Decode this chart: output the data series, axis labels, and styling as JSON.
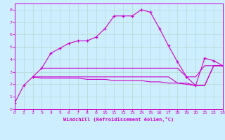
{
  "background_color": "#cceeff",
  "grid_color": "#aaddcc",
  "line_color": "#cc00cc",
  "xlim": [
    0,
    23
  ],
  "ylim": [
    0,
    8.5
  ],
  "xticks": [
    0,
    1,
    2,
    3,
    4,
    5,
    6,
    7,
    8,
    9,
    10,
    11,
    12,
    13,
    14,
    15,
    16,
    17,
    18,
    19,
    20,
    21,
    22,
    23
  ],
  "yticks": [
    0,
    1,
    2,
    3,
    4,
    5,
    6,
    7,
    8
  ],
  "xlabel": "Windchill (Refroidissement éolien,°C)",
  "main_x": [
    0,
    1,
    2,
    3,
    4,
    5,
    6,
    7,
    8,
    9,
    10,
    11,
    12,
    13,
    14,
    15,
    16,
    17,
    18,
    19,
    20,
    21,
    22,
    23
  ],
  "main_y": [
    0.5,
    1.9,
    2.6,
    3.3,
    4.5,
    4.9,
    5.3,
    5.5,
    5.5,
    5.8,
    6.5,
    7.5,
    7.5,
    7.5,
    8.0,
    7.8,
    6.5,
    5.1,
    3.8,
    2.6,
    1.9,
    4.1,
    3.9,
    3.5
  ],
  "flat1_x": [
    3,
    4,
    5,
    6,
    7,
    8,
    9,
    10,
    11,
    12,
    13,
    14,
    15,
    16,
    17,
    18,
    19,
    20,
    21,
    22,
    23
  ],
  "flat1_y": [
    3.3,
    3.3,
    3.3,
    3.3,
    3.3,
    3.3,
    3.3,
    3.3,
    3.3,
    3.3,
    3.3,
    3.3,
    3.3,
    3.3,
    3.3,
    3.3,
    2.6,
    2.6,
    3.5,
    3.5,
    3.5
  ],
  "flat2_x": [
    2,
    3,
    4,
    5,
    6,
    7,
    8,
    9,
    10,
    11,
    12,
    13,
    14,
    15,
    16,
    17,
    18,
    19,
    20,
    21,
    22,
    23
  ],
  "flat2_y": [
    2.6,
    2.6,
    2.6,
    2.6,
    2.6,
    2.6,
    2.6,
    2.6,
    2.6,
    2.6,
    2.6,
    2.6,
    2.6,
    2.6,
    2.6,
    2.6,
    2.1,
    2.1,
    1.9,
    1.9,
    3.5,
    3.5
  ],
  "flat3_x": [
    2,
    3,
    4,
    5,
    6,
    7,
    8,
    9,
    10,
    11,
    12,
    13,
    14,
    15,
    16,
    17,
    18,
    19,
    20,
    21,
    22,
    23
  ],
  "flat3_y": [
    2.6,
    2.5,
    2.5,
    2.5,
    2.5,
    2.5,
    2.4,
    2.4,
    2.4,
    2.3,
    2.3,
    2.3,
    2.3,
    2.2,
    2.2,
    2.1,
    2.1,
    2.0,
    1.9,
    1.9,
    3.5,
    3.5
  ]
}
